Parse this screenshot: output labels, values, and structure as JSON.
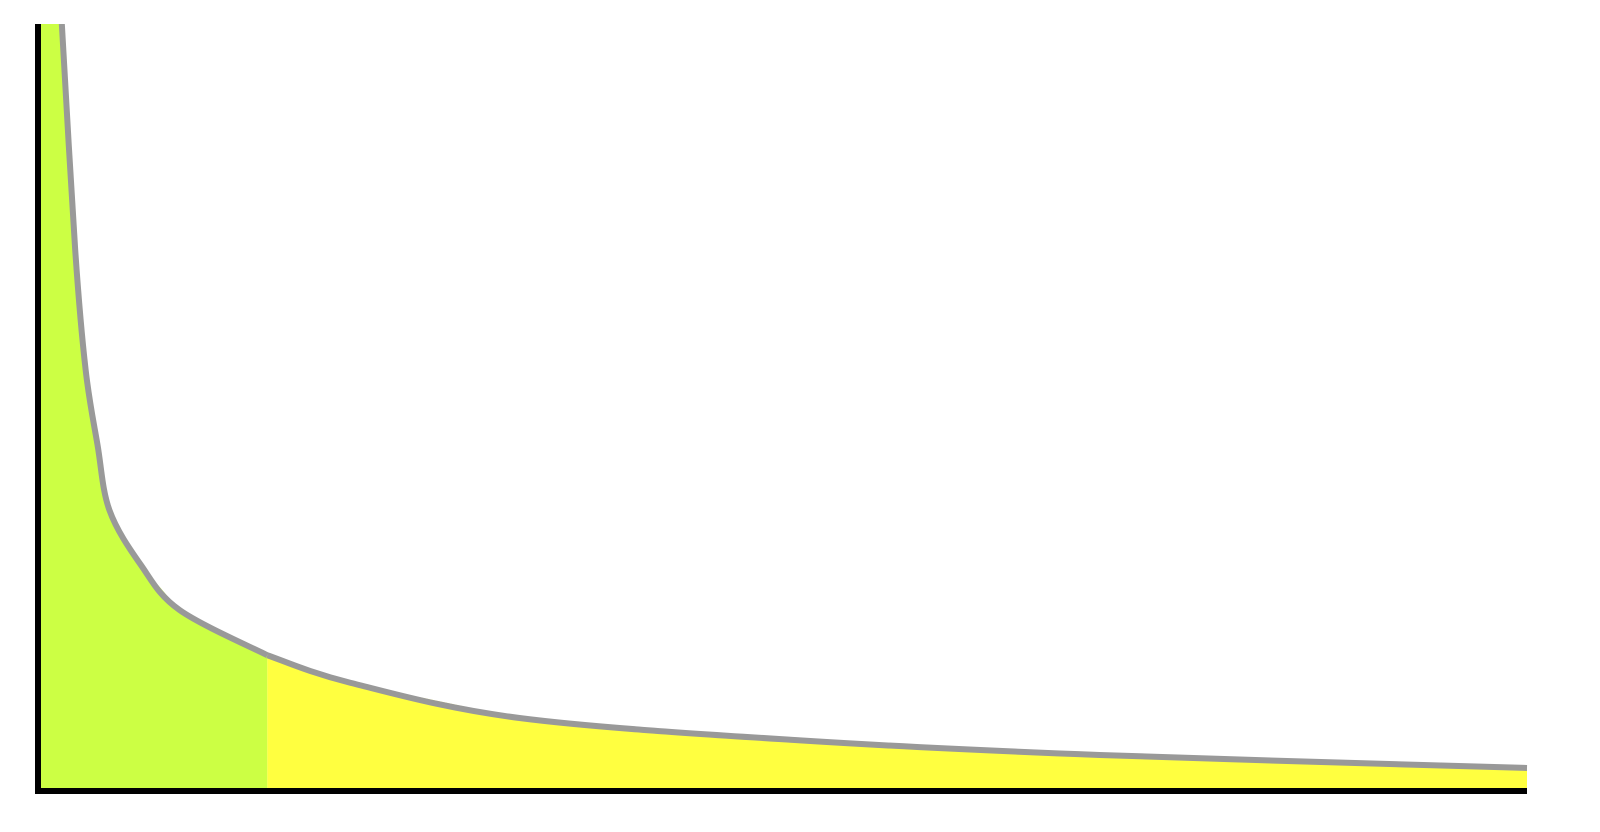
{
  "chart_data": {
    "type": "area",
    "xlim": [
      0,
      100
    ],
    "ylim": [
      0,
      100
    ],
    "line_color": "#999999",
    "axis_color": "#000000",
    "series": [
      {
        "color": "#ccff44",
        "x": [
          1.6,
          2.5,
          3.2,
          4.0,
          4.8,
          6.9,
          9.5,
          15.4
        ],
        "values": [
          100,
          70.5,
          54.9,
          45.1,
          36.6,
          29.5,
          23.6,
          17.7
        ]
      },
      {
        "color": "#ffff40",
        "x": [
          15.4,
          21.0,
          32.4,
          51.2,
          71.3,
          100
        ],
        "values": [
          17.7,
          14.1,
          9.5,
          6.6,
          4.7,
          3.0
        ]
      }
    ]
  }
}
